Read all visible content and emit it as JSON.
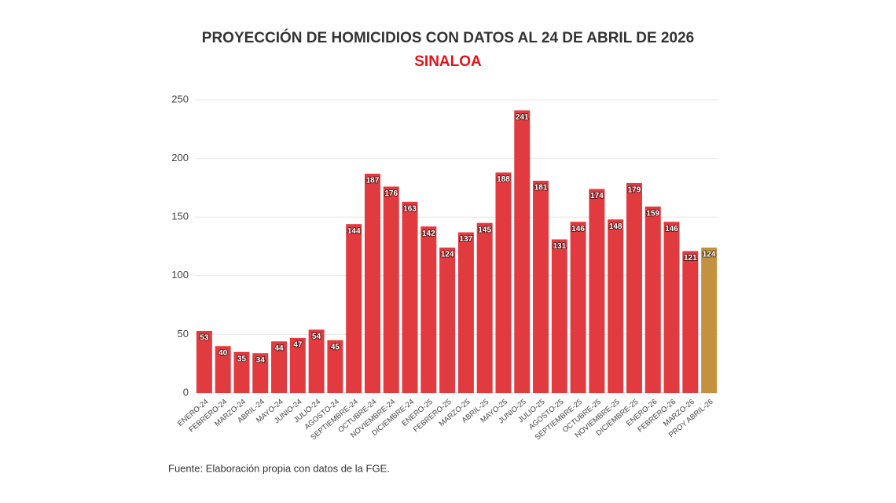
{
  "chart_data": {
    "type": "bar",
    "title": "PROYECCIÓN DE HOMICIDIOS CON DATOS AL 24 DE ABRIL DE 2026",
    "subtitle": "SINALOA",
    "source": "Fuente: Elaboración propia con datos de la FGE.",
    "categories": [
      "ENERO-24",
      "FEBRERO-24",
      "MARZO-24",
      "ABRIL-24",
      "MAYO-24",
      "JUNIO-24",
      "JULIO-24",
      "AGOSTO-24",
      "SEPTIEMBRE-24",
      "OCTUBRE-24",
      "NOVIEMBRE-24",
      "DICIEMBRE-24",
      "ENERO-25",
      "FEBRERO-25",
      "MARZO-25",
      "ABRIL-25",
      "MAYO-25",
      "JUNIO-25",
      "JULIO-25",
      "AGOSTO-25",
      "SEPTIEMBRE-25",
      "OCTUBRE-25",
      "NOVIEMBRE-25",
      "DICIEMBRE-25",
      "ENERO-26",
      "FEBRERO-26",
      "MARZO-26",
      "PROY ABRIL-26"
    ],
    "values": [
      53,
      40,
      35,
      34,
      44,
      47,
      54,
      45,
      144,
      187,
      176,
      163,
      142,
      124,
      137,
      145,
      188,
      241,
      181,
      131,
      146,
      174,
      148,
      179,
      159,
      146,
      121,
      124
    ],
    "colors": [
      "#e23b3f",
      "#e23b3f",
      "#e23b3f",
      "#e23b3f",
      "#e23b3f",
      "#e23b3f",
      "#e23b3f",
      "#e23b3f",
      "#e23b3f",
      "#e23b3f",
      "#e23b3f",
      "#e23b3f",
      "#e23b3f",
      "#e23b3f",
      "#e23b3f",
      "#e23b3f",
      "#e23b3f",
      "#e23b3f",
      "#e23b3f",
      "#e23b3f",
      "#e23b3f",
      "#e23b3f",
      "#e23b3f",
      "#e23b3f",
      "#e23b3f",
      "#e23b3f",
      "#e23b3f",
      "#c4923f"
    ],
    "ylim": [
      0,
      250
    ],
    "yticks": [
      0,
      50,
      100,
      150,
      200,
      250
    ],
    "grid": true
  }
}
